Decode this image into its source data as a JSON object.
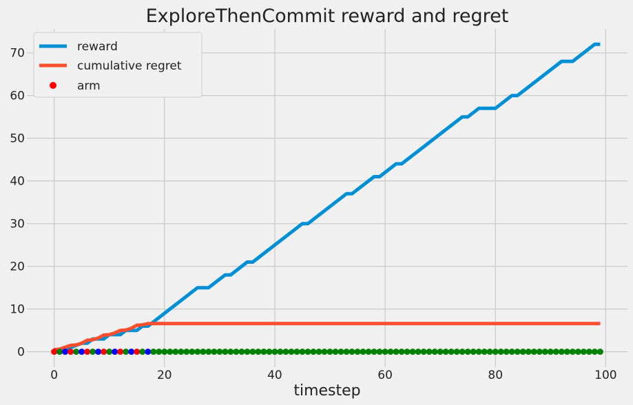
{
  "chart_data": {
    "type": "line",
    "title": "ExploreThenCommit reward and regret",
    "xlabel": "timestep",
    "ylabel": "",
    "xlim": [
      -4.95,
      103.95
    ],
    "ylim": [
      -3.6,
      75.6
    ],
    "xticks": [
      0,
      20,
      40,
      60,
      80,
      100
    ],
    "yticks": [
      0,
      10,
      20,
      30,
      40,
      50,
      60,
      70
    ],
    "grid": true,
    "legend_position": "top-left",
    "legend": [
      "reward",
      "cumulative regret",
      "arm"
    ],
    "series": [
      {
        "name": "reward",
        "kind": "line",
        "color": "#008fd5",
        "x": [
          0,
          1,
          2,
          3,
          5,
          6,
          7,
          9,
          10,
          12,
          13,
          15,
          16,
          17,
          18,
          25,
          26,
          28,
          31,
          32,
          35,
          36,
          45,
          46,
          53,
          54,
          58,
          59,
          62,
          63,
          74,
          75,
          77,
          80,
          83,
          84,
          92,
          94,
          98,
          99
        ],
        "y": [
          0,
          0,
          0,
          1,
          2,
          2,
          3,
          3,
          4,
          4,
          5,
          5,
          6,
          6,
          7,
          14,
          15,
          15,
          18,
          18,
          21,
          21,
          30,
          30,
          37,
          37,
          41,
          41,
          44,
          44,
          55,
          55,
          57,
          57,
          60,
          60,
          68,
          68,
          72,
          72
        ]
      },
      {
        "name": "cumulative regret",
        "kind": "line",
        "color": "#fc4f30",
        "x": [
          0,
          1,
          3,
          4,
          5,
          6,
          7,
          8,
          9,
          10,
          11,
          12,
          13,
          14,
          15,
          16,
          17,
          18,
          99
        ],
        "y": [
          0.5,
          0.6,
          1.5,
          1.6,
          2.0,
          2.7,
          2.8,
          3.2,
          3.9,
          4.0,
          4.4,
          5.0,
          5.1,
          5.5,
          6.2,
          6.3,
          6.6,
          6.6,
          6.6
        ]
      },
      {
        "name": "arm",
        "kind": "scatter",
        "color": "#ff0000",
        "x": [
          0,
          1,
          2,
          3,
          4,
          5,
          6,
          7,
          8,
          9,
          10,
          11,
          12,
          13,
          14,
          15,
          16,
          17,
          18,
          19,
          20,
          21,
          22,
          23,
          24,
          25,
          26,
          27,
          28,
          29,
          30,
          31,
          32,
          33,
          34,
          35,
          36,
          37,
          38,
          39,
          40,
          41,
          42,
          43,
          44,
          45,
          46,
          47,
          48,
          49,
          50,
          51,
          52,
          53,
          54,
          55,
          56,
          57,
          58,
          59,
          60,
          61,
          62,
          63,
          64,
          65,
          66,
          67,
          68,
          69,
          70,
          71,
          72,
          73,
          74,
          75,
          76,
          77,
          78,
          79,
          80,
          81,
          82,
          83,
          84,
          85,
          86,
          87,
          88,
          89,
          90,
          91,
          92,
          93,
          94,
          95,
          96,
          97,
          98,
          99
        ],
        "y": [
          0,
          0,
          0,
          0,
          0,
          0,
          0,
          0,
          0,
          0,
          0,
          0,
          0,
          0,
          0,
          0,
          0,
          0,
          0,
          0,
          0,
          0,
          0,
          0,
          0,
          0,
          0,
          0,
          0,
          0,
          0,
          0,
          0,
          0,
          0,
          0,
          0,
          0,
          0,
          0,
          0,
          0,
          0,
          0,
          0,
          0,
          0,
          0,
          0,
          0,
          0,
          0,
          0,
          0,
          0,
          0,
          0,
          0,
          0,
          0,
          0,
          0,
          0,
          0,
          0,
          0,
          0,
          0,
          0,
          0,
          0,
          0,
          0,
          0,
          0,
          0,
          0,
          0,
          0,
          0,
          0,
          0,
          0,
          0,
          0,
          0,
          0,
          0,
          0,
          0,
          0,
          0,
          0,
          0,
          0,
          0,
          0,
          0,
          0,
          0
        ],
        "point_colors": [
          "#ff0000",
          "#008000",
          "#0000ff",
          "#ff0000",
          "#008000",
          "#0000ff",
          "#ff0000",
          "#008000",
          "#0000ff",
          "#ff0000",
          "#008000",
          "#0000ff",
          "#ff0000",
          "#008000",
          "#0000ff",
          "#ff0000",
          "#008000",
          "#0000ff",
          "#008000",
          "#008000",
          "#008000",
          "#008000",
          "#008000",
          "#008000",
          "#008000",
          "#008000",
          "#008000",
          "#008000",
          "#008000",
          "#008000",
          "#008000",
          "#008000",
          "#008000",
          "#008000",
          "#008000",
          "#008000",
          "#008000",
          "#008000",
          "#008000",
          "#008000",
          "#008000",
          "#008000",
          "#008000",
          "#008000",
          "#008000",
          "#008000",
          "#008000",
          "#008000",
          "#008000",
          "#008000",
          "#008000",
          "#008000",
          "#008000",
          "#008000",
          "#008000",
          "#008000",
          "#008000",
          "#008000",
          "#008000",
          "#008000",
          "#008000",
          "#008000",
          "#008000",
          "#008000",
          "#008000",
          "#008000",
          "#008000",
          "#008000",
          "#008000",
          "#008000",
          "#008000",
          "#008000",
          "#008000",
          "#008000",
          "#008000",
          "#008000",
          "#008000",
          "#008000",
          "#008000",
          "#008000",
          "#008000",
          "#008000",
          "#008000",
          "#008000",
          "#008000",
          "#008000",
          "#008000",
          "#008000",
          "#008000",
          "#008000",
          "#008000",
          "#008000",
          "#008000",
          "#008000",
          "#008000",
          "#008000",
          "#008000",
          "#008000",
          "#008000",
          "#008000"
        ]
      }
    ]
  }
}
